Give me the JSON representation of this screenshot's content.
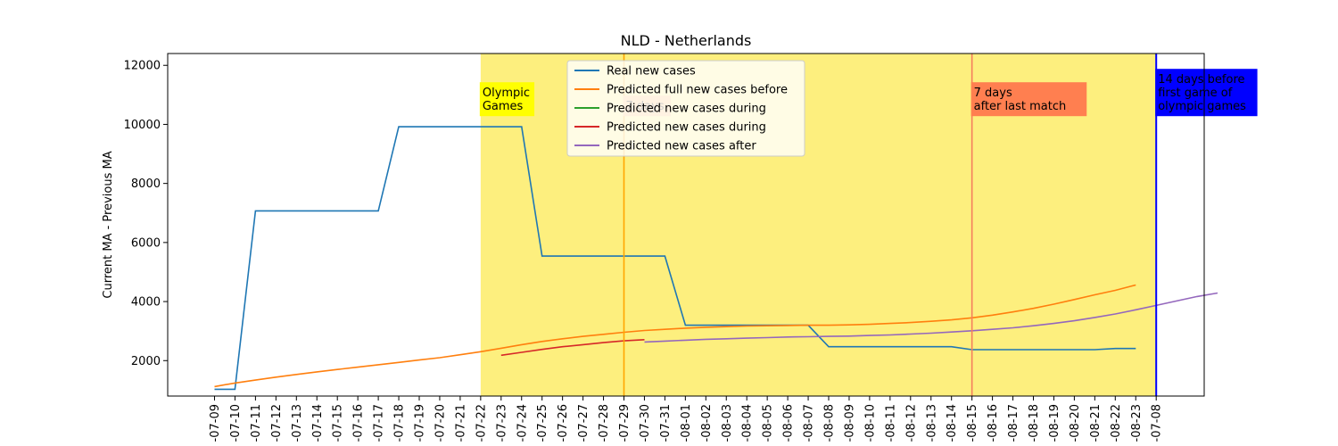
{
  "chart_data": {
    "type": "line",
    "title": "NLD - Netherlands",
    "xlabel": "",
    "ylabel": "Current MA - Previous MA",
    "ylim": [
      800,
      12400
    ],
    "yticks": [
      2000,
      4000,
      6000,
      8000,
      10000,
      12000
    ],
    "grid": false,
    "legend_position": "top-center",
    "x_tick_labels": [
      "-07-09",
      "-07-10",
      "-07-11",
      "-07-12",
      "-07-13",
      "-07-14",
      "-07-15",
      "-07-16",
      "-07-17",
      "-07-18",
      "-07-19",
      "-07-20",
      "-07-21",
      "-07-22",
      "-07-23",
      "-07-24",
      "-07-25",
      "-07-26",
      "-07-27",
      "-07-28",
      "-07-29",
      "-07-30",
      "-07-31",
      "-08-01",
      "-08-02",
      "-08-03",
      "-08-04",
      "-08-05",
      "-08-06",
      "-08-07",
      "-08-08",
      "-08-09",
      "-08-10",
      "-08-11",
      "-08-12",
      "-08-13",
      "-08-14",
      "-08-15",
      "-08-16",
      "-08-17",
      "-08-18",
      "-08-19",
      "-08-20",
      "-08-21",
      "-08-22",
      "-08-23",
      "-07-08"
    ],
    "series": [
      {
        "name": "Real new cases",
        "color": "#1f77b4",
        "start": 0,
        "values": [
          1030,
          1030,
          7070,
          7070,
          7070,
          7070,
          7070,
          7070,
          7070,
          9920,
          9920,
          9920,
          9920,
          9920,
          9920,
          9920,
          5540,
          5540,
          5540,
          5540,
          5540,
          5540,
          5540,
          3200,
          3200,
          3200,
          3200,
          3200,
          3200,
          3200,
          2470,
          2470,
          2470,
          2470,
          2470,
          2470,
          2470,
          2370,
          2370,
          2370,
          2370,
          2370,
          2370,
          2370,
          2410,
          2410
        ]
      },
      {
        "name": "Predicted full new cases before",
        "color": "#ff7f0e",
        "start": 0,
        "values": [
          1120,
          1240,
          1340,
          1440,
          1530,
          1620,
          1700,
          1780,
          1860,
          1940,
          2020,
          2100,
          2200,
          2300,
          2420,
          2540,
          2650,
          2740,
          2820,
          2890,
          2960,
          3020,
          3060,
          3100,
          3130,
          3150,
          3170,
          3180,
          3190,
          3200,
          3200,
          3210,
          3230,
          3260,
          3290,
          3330,
          3380,
          3450,
          3540,
          3650,
          3770,
          3910,
          4070,
          4230,
          4380,
          4560
        ]
      },
      {
        "name": "Predicted new cases during",
        "color": "#2ca02c",
        "start": 14,
        "values": []
      },
      {
        "name": "Predicted new cases during",
        "color": "#d62728",
        "start": 14,
        "values": [
          2180,
          2280,
          2380,
          2470,
          2540,
          2610,
          2670,
          2710
        ]
      },
      {
        "name": "Predicted new cases after",
        "color": "#9467bd",
        "start": 21,
        "values": [
          2630,
          2660,
          2690,
          2720,
          2740,
          2760,
          2780,
          2800,
          2810,
          2820,
          2830,
          2850,
          2870,
          2900,
          2930,
          2970,
          3010,
          3060,
          3110,
          3180,
          3260,
          3350,
          3460,
          3580,
          3720,
          3870,
          4020,
          4170,
          4290
        ]
      }
    ],
    "highlight_span": {
      "from_index": 13,
      "to_index": 46,
      "color": "#fdef7e"
    },
    "vertical_lines": [
      {
        "index": 20,
        "color": "#ffa500"
      },
      {
        "index": 37,
        "color": "#f57f5d"
      },
      {
        "index": 46,
        "color": "#0000ff"
      }
    ],
    "annotations": [
      {
        "text": [
          "Olympic",
          "Games"
        ],
        "index": 13,
        "y": 10400,
        "bg": "#ffff00",
        "color": "#000000"
      },
      {
        "text": [
          "7 days"
        ],
        "index": 20,
        "y": 10400,
        "bg": "#ffbf6e",
        "color": "#000000"
      },
      {
        "text": [
          "7 days",
          "after last match"
        ],
        "index": 37,
        "y": 10400,
        "bg": "#ff7f50",
        "color": "#000000"
      },
      {
        "text": [
          "14 days before",
          "first game of",
          "olympic games"
        ],
        "index": 46,
        "y": 10400,
        "bg": "#0000ff",
        "color": "#ffffff"
      }
    ]
  }
}
